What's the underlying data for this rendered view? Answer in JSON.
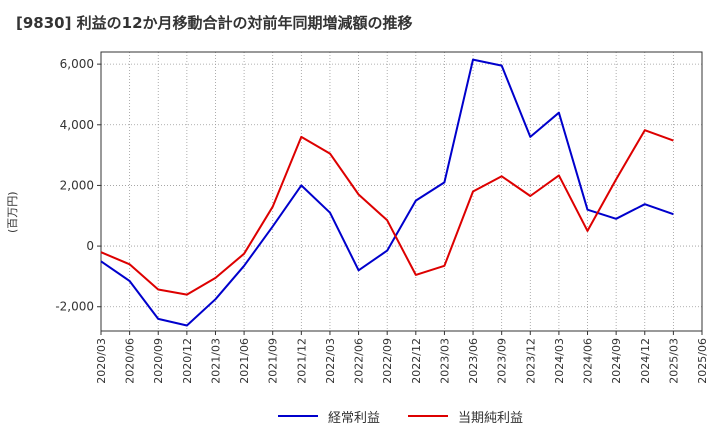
{
  "chart_data": {
    "type": "line",
    "title": "[9830]  利益の12か月移動合計の対前年同期増減額の推移",
    "ylabel": "(百万円)",
    "xlabel": "",
    "ylim": [
      -2800,
      6400
    ],
    "yticks": [
      -2000,
      0,
      2000,
      4000,
      6000
    ],
    "ytick_labels": [
      "-2,000",
      "0",
      "2,000",
      "4,000",
      "6,000"
    ],
    "categories": [
      "2020/03",
      "2020/06",
      "2020/09",
      "2020/12",
      "2021/03",
      "2021/06",
      "2021/09",
      "2021/12",
      "2022/03",
      "2022/06",
      "2022/09",
      "2022/12",
      "2023/03",
      "2023/06",
      "2023/09",
      "2023/12",
      "2024/03",
      "2024/06",
      "2024/09",
      "2024/12",
      "2025/03",
      "2025/06"
    ],
    "series": [
      {
        "name": "経常利益",
        "color": "#0000cc",
        "values": [
          -500,
          -1150,
          -2400,
          -2620,
          -1750,
          -650,
          650,
          2000,
          1100,
          -800,
          -150,
          1500,
          2100,
          6150,
          5950,
          3600,
          4400,
          1200,
          900,
          1380,
          1050,
          null
        ]
      },
      {
        "name": "当期純利益",
        "color": "#dd0000",
        "values": [
          -200,
          -600,
          -1430,
          -1600,
          -1050,
          -250,
          1300,
          3600,
          3050,
          1700,
          850,
          -950,
          -650,
          1800,
          2300,
          1650,
          2330,
          500,
          2200,
          3820,
          3480,
          null
        ]
      }
    ],
    "grid": true,
    "legend_position": "bottom-center"
  }
}
